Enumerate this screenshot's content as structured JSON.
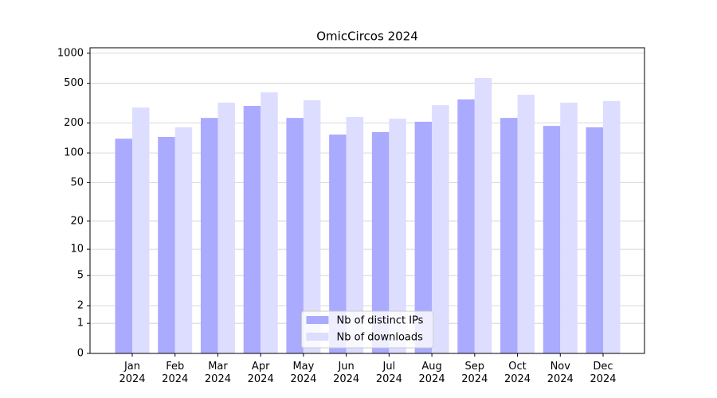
{
  "chart_data": {
    "type": "bar",
    "title": "OmicCircos 2024",
    "categories": [
      "Jan\n2024",
      "Feb\n2024",
      "Mar\n2024",
      "Apr\n2024",
      "May\n2024",
      "Jun\n2024",
      "Jul\n2024",
      "Aug\n2024",
      "Sep\n2024",
      "Oct\n2024",
      "Nov\n2024",
      "Dec\n2024"
    ],
    "series": [
      {
        "name": "Nb of distinct IPs",
        "color": "#aaaaff",
        "values": [
          139,
          145,
          225,
          297,
          225,
          153,
          162,
          206,
          345,
          225,
          187,
          181
        ]
      },
      {
        "name": "Nb of downloads",
        "color": "#ddddff",
        "values": [
          286,
          181,
          320,
          406,
          338,
          230,
          221,
          302,
          565,
          384,
          320,
          332
        ]
      }
    ],
    "yscale": "log1p",
    "ylim": [
      0,
      1135
    ],
    "yticks": [
      0,
      1,
      2,
      5,
      10,
      20,
      50,
      100,
      200,
      500,
      1000
    ],
    "grid": true,
    "legend": "lower center"
  }
}
